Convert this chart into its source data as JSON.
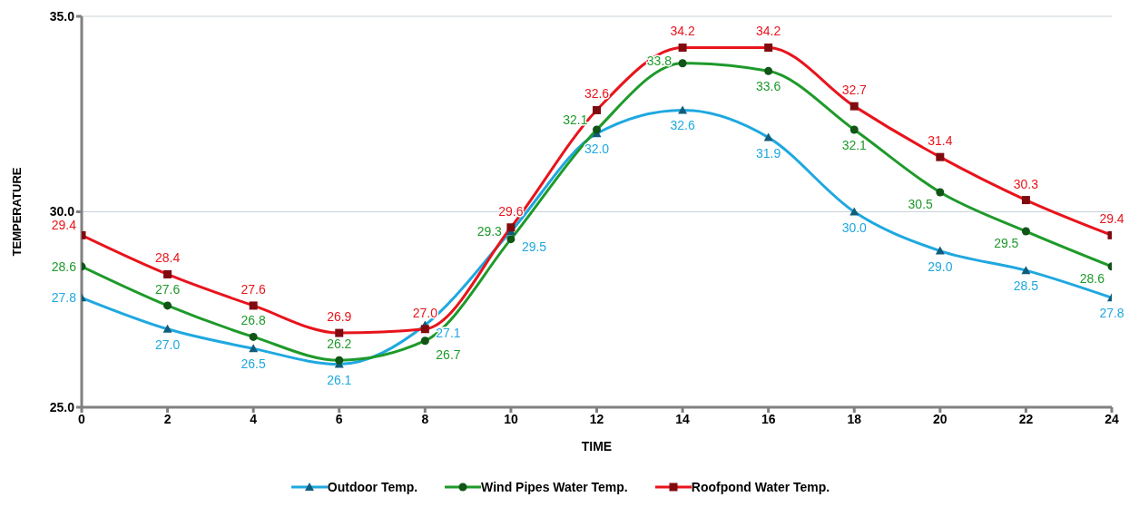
{
  "chart_data": {
    "type": "line",
    "xlabel": "TIME",
    "ylabel": "TEMPERATURE",
    "x": [
      0,
      2,
      4,
      6,
      8,
      10,
      12,
      14,
      16,
      18,
      20,
      22,
      24
    ],
    "xlim": [
      0,
      24
    ],
    "xticks": [
      0,
      2,
      4,
      6,
      8,
      10,
      12,
      14,
      16,
      18,
      20,
      22,
      24
    ],
    "ylim": [
      25,
      35
    ],
    "yticks": [
      {
        "value": 25,
        "label": "25.0"
      },
      {
        "value": 30,
        "label": "30.0"
      },
      {
        "value": 35,
        "label": "35.0"
      }
    ],
    "grid": "y",
    "legend": "bottom",
    "data_labels": true,
    "line_style": "solid",
    "series": [
      {
        "name": "Outdoor Temp.",
        "color": "#1fa8e0",
        "marker": "triangle",
        "values": [
          27.8,
          27.0,
          26.5,
          26.1,
          27.1,
          29.5,
          32.0,
          32.6,
          31.9,
          30.0,
          29.0,
          28.5,
          27.8
        ],
        "value_labels": [
          "27.8",
          "27.0",
          "26.5",
          "26.1",
          "27.1",
          "29.5",
          "32.0",
          "32.6",
          "31.9",
          "30.0",
          "29.0",
          "28.5",
          "27.8"
        ]
      },
      {
        "name": "Wind Pipes Water Temp.",
        "color": "#1e9a2a",
        "marker": "circle",
        "values": [
          28.6,
          27.6,
          26.8,
          26.2,
          26.7,
          29.3,
          32.1,
          33.8,
          33.6,
          32.1,
          30.5,
          29.5,
          28.6
        ],
        "value_labels": [
          "28.6",
          "27.6",
          "26.8",
          "26.2",
          "26.7",
          "29.3",
          "32.1",
          "33.8",
          "33.6",
          "32.1",
          "30.5",
          "29.5",
          "28.6"
        ]
      },
      {
        "name": "Roofpond Water Temp.",
        "color": "#e8141c",
        "marker": "square",
        "values": [
          29.4,
          28.4,
          27.6,
          26.9,
          27.0,
          29.6,
          32.6,
          34.2,
          34.2,
          32.7,
          31.4,
          30.3,
          29.4
        ],
        "value_labels": [
          "29.4",
          "28.4",
          "27.6",
          "26.9",
          "27.0",
          "29.6",
          "32.6",
          "34.2",
          "34.2",
          "32.7",
          "31.4",
          "30.3",
          "29.4"
        ]
      }
    ]
  }
}
